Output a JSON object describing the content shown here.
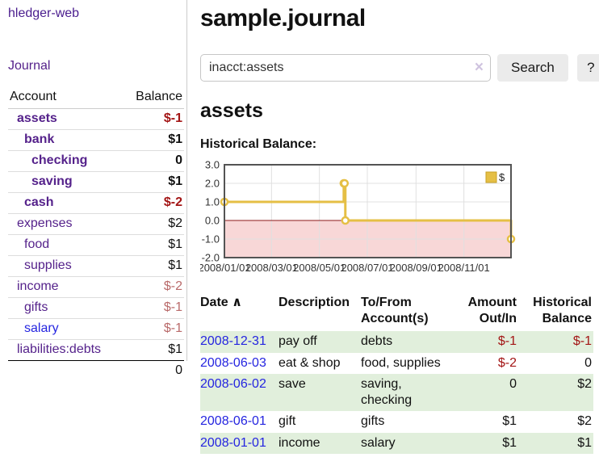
{
  "app": {
    "title": "sample.journal"
  },
  "sidebar": {
    "brand": "hledger-web",
    "journal_label": "Journal",
    "accounts": {
      "headers": [
        "Account",
        "Balance"
      ],
      "rows": [
        {
          "name": "assets",
          "indent": 1,
          "bold": true,
          "balance": "$-1",
          "negative": true
        },
        {
          "name": "bank",
          "indent": 2,
          "bold": true,
          "balance": "$1"
        },
        {
          "name": "checking",
          "indent": 3,
          "bold": true,
          "balance": "0"
        },
        {
          "name": "saving",
          "indent": 3,
          "bold": true,
          "balance": "$1"
        },
        {
          "name": "cash",
          "indent": 2,
          "bold": true,
          "balance": "$-2",
          "negative": true
        },
        {
          "name": "expenses",
          "indent": 1,
          "bold": false,
          "balance": "$2"
        },
        {
          "name": "food",
          "indent": 2,
          "bold": false,
          "balance": "$1"
        },
        {
          "name": "supplies",
          "indent": 2,
          "bold": false,
          "balance": "$1"
        },
        {
          "name": "income",
          "indent": 1,
          "bold": false,
          "balance": "$-2",
          "negative": true
        },
        {
          "name": "gifts",
          "indent": 2,
          "bold": false,
          "balance": "$-1",
          "negative": true
        },
        {
          "name": "salary",
          "indent": 2,
          "bold": false,
          "balance": "$-1",
          "negative": true,
          "blue": true
        },
        {
          "name": "liabilities:debts",
          "indent": 1,
          "bold": false,
          "balance": "$1"
        }
      ],
      "total": "0"
    }
  },
  "search": {
    "value": "inacct:assets",
    "clear_icon": "×",
    "button_label": "Search",
    "help_label": "?"
  },
  "main": {
    "heading": "assets",
    "chart_label": "Historical Balance:"
  },
  "chart_data": {
    "type": "line",
    "title": "Historical Balance:",
    "series": [
      {
        "name": "$",
        "color": "#e5bf45",
        "points": [
          [
            "2008/01/01",
            1
          ],
          [
            "2008/06/01",
            2
          ],
          [
            "2008/06/02",
            2
          ],
          [
            "2008/06/03",
            0
          ],
          [
            "2008/12/31",
            -1
          ]
        ]
      }
    ],
    "x_range": [
      "2008/01/01",
      "2008/12/31"
    ],
    "x_ticks": [
      "2008/01/01",
      "2008/03/01",
      "2008/05/01",
      "2008/07/01",
      "2008/09/01",
      "2008/11/01"
    ],
    "y_ticks": [
      3.0,
      2.0,
      1.0,
      0.0,
      -1.0,
      -2.0
    ],
    "ylim": [
      -2,
      3
    ],
    "grid": true,
    "legend_position": "top-right",
    "step": true,
    "negative_region_color": "#f8d7d7",
    "zero_line_color": "#8b1a1a",
    "grid_color": "#e0e0e0",
    "border_color": "#545454"
  },
  "register": {
    "headers": [
      {
        "label": "Date",
        "sort_indicator": "∧",
        "align": "left"
      },
      {
        "label": "Description",
        "align": "left"
      },
      {
        "label": "To/From Account(s)",
        "align": "left"
      },
      {
        "label": "Amount Out/In",
        "align": "right"
      },
      {
        "label": "Historical Balance",
        "align": "right"
      }
    ],
    "rows": [
      {
        "date": "2008-12-31",
        "description": "pay off",
        "accounts": "debts",
        "amount": "$-1",
        "amount_negative": true,
        "balance": "$-1",
        "balance_negative": true,
        "shaded": true
      },
      {
        "date": "2008-06-03",
        "description": "eat & shop",
        "accounts": "food, supplies",
        "amount": "$-2",
        "amount_negative": true,
        "balance": "0",
        "balance_negative": false,
        "shaded": false
      },
      {
        "date": "2008-06-02",
        "description": "save",
        "accounts": "saving, checking",
        "amount": "0",
        "amount_negative": false,
        "balance": "$2",
        "balance_negative": false,
        "shaded": true
      },
      {
        "date": "2008-06-01",
        "description": "gift",
        "accounts": "gifts",
        "amount": "$1",
        "amount_negative": false,
        "balance": "$2",
        "balance_negative": false,
        "shaded": false
      },
      {
        "date": "2008-01-01",
        "description": "income",
        "accounts": "salary",
        "amount": "$1",
        "amount_negative": false,
        "balance": "$1",
        "balance_negative": false,
        "shaded": true
      }
    ]
  },
  "colors": {
    "link_purple": "#55228b",
    "link_blue": "#2525e0",
    "negative_strong": "#a31515",
    "negative_soft": "#b96a6a",
    "row_shade": "#e1efdc",
    "chart_line": "#e5bf45"
  }
}
